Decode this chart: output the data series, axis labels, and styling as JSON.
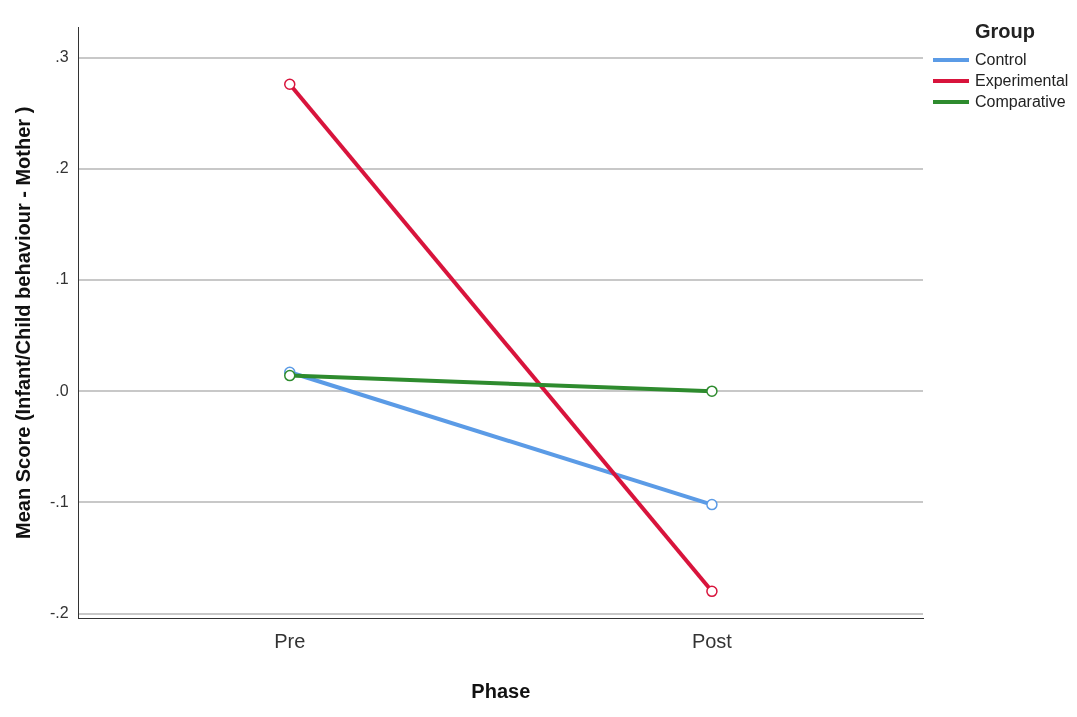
{
  "chart_data": {
    "type": "line",
    "xlabel": "Phase",
    "ylabel": "Mean Score (Infant/Child behaviour - Mother )",
    "legend_title": "Group",
    "categories": [
      "Pre",
      "Post"
    ],
    "series": [
      {
        "name": "Control",
        "color": "#5b9be6",
        "values": [
          0.017,
          -0.102
        ]
      },
      {
        "name": "Experimental",
        "color": "#d8143c",
        "values": [
          0.276,
          -0.18
        ]
      },
      {
        "name": "Comparative",
        "color": "#2e8b2e",
        "values": [
          0.014,
          0.0
        ]
      }
    ],
    "ylim": [
      -0.204,
      0.327
    ],
    "yticks": [
      {
        "value": -0.2,
        "label": "-.2"
      },
      {
        "value": -0.1,
        "label": "-.1"
      },
      {
        "value": 0,
        "label": ".0"
      },
      {
        "value": 0.1,
        "label": ".1"
      },
      {
        "value": 0.2,
        "label": ".2"
      },
      {
        "value": 0.3,
        "label": ".3"
      }
    ],
    "grid": "y",
    "legend": "top right",
    "marker": "circle",
    "line_style": "solid"
  }
}
